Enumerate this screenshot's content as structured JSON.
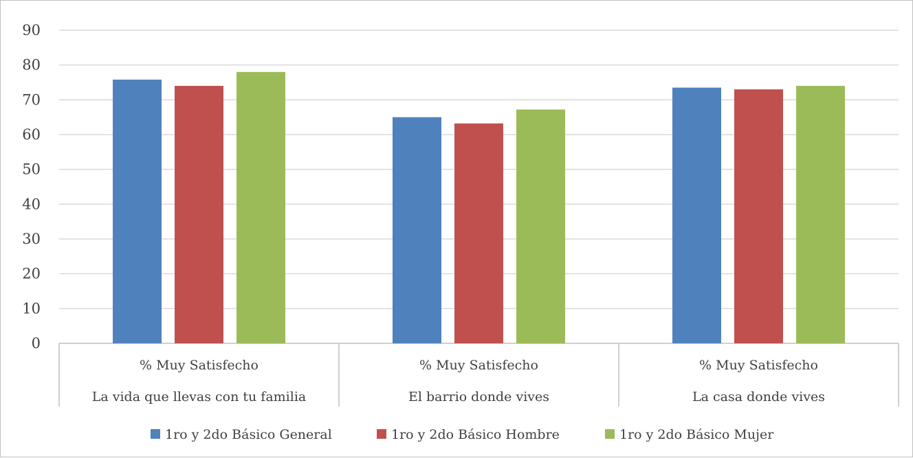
{
  "chart_data": {
    "type": "bar",
    "title": "",
    "xlabel": "",
    "ylabel": "",
    "ylim": [
      0,
      90
    ],
    "yticks": [
      0,
      10,
      20,
      30,
      40,
      50,
      60,
      70,
      80,
      90
    ],
    "grid": true,
    "legend_position": "bottom",
    "categories": [
      {
        "line1": "% Muy Satisfecho",
        "line2": "La vida que llevas con tu familia"
      },
      {
        "line1": "% Muy Satisfecho",
        "line2": "El barrio donde vives"
      },
      {
        "line1": "% Muy Satisfecho",
        "line2": "La casa donde vives"
      }
    ],
    "series": [
      {
        "name": "1ro y 2do Básico General",
        "color": "#4f81bd",
        "values": [
          75.8,
          65.0,
          73.5
        ]
      },
      {
        "name": "1ro y 2do Básico Hombre",
        "color": "#c0504d",
        "values": [
          74.0,
          63.2,
          73.0
        ]
      },
      {
        "name": "1ro y 2do Básico Mujer",
        "color": "#9bbb59",
        "values": [
          78.0,
          67.2,
          74.0
        ]
      }
    ]
  }
}
